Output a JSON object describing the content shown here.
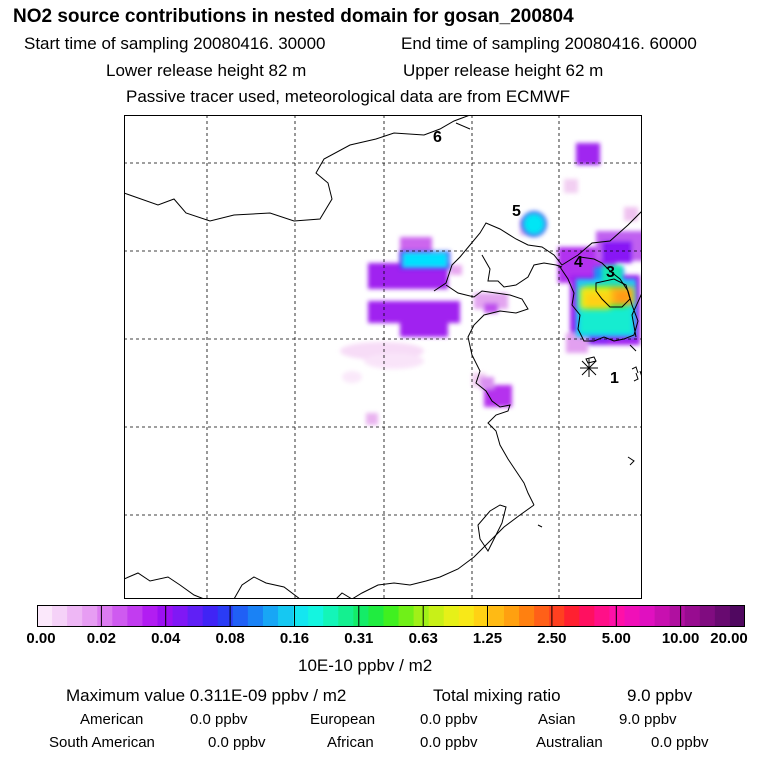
{
  "header": {
    "title": "NO2 source contributions in nested domain for gosan_200804",
    "start_time": "Start time of sampling 20080416. 30000",
    "end_time": "End time of sampling 20080416. 60000",
    "lower_release": "Lower release height   82 m",
    "upper_release": "Upper release height   62 m",
    "tracer_note": "Passive tracer used, meteorological data are from ECMWF"
  },
  "map": {
    "station_labels": [
      "1",
      "3",
      "4",
      "5",
      "6"
    ],
    "colors": {
      "coast": "#000000",
      "grid": "#000000"
    }
  },
  "colorbar": {
    "tick_labels": [
      "0.00",
      "0.02",
      "0.04",
      "0.08",
      "0.16",
      "0.31",
      "0.63",
      "1.25",
      "2.50",
      "5.00",
      "10.00",
      "20.00"
    ],
    "units": "10E-10 ppbv / m2",
    "colors": [
      "#fbe8fb",
      "#f5d2f8",
      "#eeb7f5",
      "#e79df3",
      "#dc7bf0",
      "#cf5af0",
      "#c23cf0",
      "#b21df2",
      "#9c10f2",
      "#8018f5",
      "#6020f5",
      "#4024f5",
      "#2a3cf5",
      "#2060f5",
      "#1a82f5",
      "#18a6f5",
      "#16c8f2",
      "#14e6f0",
      "#14f5e0",
      "#14f5b8",
      "#14f090",
      "#14ec68",
      "#20ec40",
      "#40f020",
      "#70f018",
      "#a0f018",
      "#c8f018",
      "#e6f018",
      "#f8e818",
      "#ffd214",
      "#ffba14",
      "#ffa010",
      "#ff8010",
      "#ff6018",
      "#ff4020",
      "#ff2030",
      "#ff1060",
      "#ff1088",
      "#ff10a8",
      "#f010b8",
      "#e010c0",
      "#c810b0",
      "#b010a0",
      "#980c90",
      "#800c80",
      "#680a70",
      "#500860"
    ]
  },
  "summary": {
    "max_value": "Maximum value  0.311E-09 ppbv / m2",
    "total_label": "Total mixing ratio",
    "total_value": "9.0 ppbv",
    "contributions": [
      {
        "name": "American",
        "value": "0.0 ppbv"
      },
      {
        "name": "European",
        "value": "0.0 ppbv"
      },
      {
        "name": "Asian",
        "value": "9.0 ppbv"
      },
      {
        "name": "South American",
        "value": "0.0 ppbv"
      },
      {
        "name": "African",
        "value": "0.0 ppbv"
      },
      {
        "name": "Australian",
        "value": "0.0 ppbv"
      }
    ]
  }
}
